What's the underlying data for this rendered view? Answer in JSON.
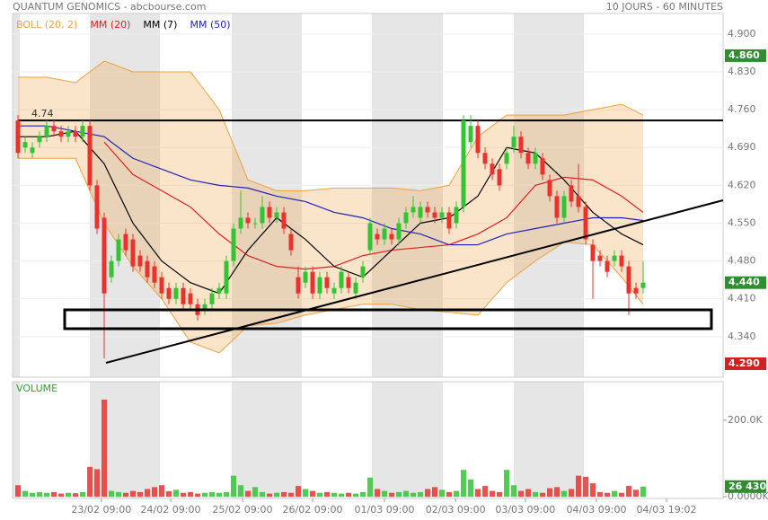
{
  "chart_data": {
    "type": "candlestick",
    "title": "QUANTUM GENOMICS - abcbourse.com",
    "subtitle": "10 JOURS - 60 MINUTES",
    "xlim": [
      -0.75,
      98.125
    ],
    "xticks": [
      {
        "value": 11.6,
        "label": "23/02 09:00"
      },
      {
        "value": 21.25,
        "label": "24/02 09:00"
      },
      {
        "value": 31.25,
        "label": "25/02 09:00"
      },
      {
        "value": 41,
        "label": "26/02 09:00"
      },
      {
        "value": 51,
        "label": "01/03 09:00"
      },
      {
        "value": 60.9,
        "label": "02/03 09:00"
      },
      {
        "value": 70.6,
        "label": "03/03 09:00"
      },
      {
        "value": 80.5,
        "label": "04/03 09:00"
      },
      {
        "value": 90.25,
        "label": "04/03 19:02"
      }
    ],
    "ylim": [
      4.265,
      4.938
    ],
    "yticks": [
      {
        "value": 4.34,
        "label": "4.340"
      },
      {
        "value": 4.41,
        "label": "4.410"
      },
      {
        "value": 4.48,
        "label": "4.480"
      },
      {
        "value": 4.55,
        "label": "4.550"
      },
      {
        "value": 4.62,
        "label": "4.620"
      },
      {
        "value": 4.69,
        "label": "4.690"
      },
      {
        "value": 4.76,
        "label": "4.760"
      },
      {
        "value": 4.83,
        "label": "4.830"
      },
      {
        "value": 4.9,
        "label": "4.900"
      }
    ],
    "up_color": "#33c433",
    "down_color": "#e8322e",
    "open": [
      4.74,
      4.69,
      4.68,
      4.7,
      4.71,
      4.73,
      4.72,
      4.71,
      4.72,
      4.71,
      4.73,
      4.62,
      4.56,
      4.45,
      4.48,
      4.53,
      4.52,
      4.49,
      4.48,
      4.47,
      4.45,
      4.43,
      4.41,
      4.43,
      4.42,
      4.4,
      4.39,
      4.4,
      4.42,
      4.42,
      4.48,
      4.54,
      4.56,
      4.55,
      4.55,
      4.58,
      4.56,
      4.57,
      4.53,
      4.45,
      4.44,
      4.46,
      4.42,
      4.45,
      4.42,
      4.43,
      4.45,
      4.42,
      4.45,
      4.5,
      4.53,
      4.52,
      4.53,
      4.52,
      4.55,
      4.57,
      4.56,
      4.58,
      4.57,
      4.56,
      4.57,
      4.55,
      4.58,
      4.7,
      4.73,
      4.68,
      4.66,
      4.65,
      4.66,
      4.69,
      4.71,
      4.68,
      4.66,
      4.67,
      4.63,
      4.6,
      4.56,
      4.62,
      4.6,
      4.58,
      4.51,
      4.49,
      4.48,
      4.48,
      4.49,
      4.47,
      4.43,
      4.43
    ],
    "high": [
      4.75,
      4.71,
      4.7,
      4.72,
      4.74,
      4.74,
      4.73,
      4.73,
      4.73,
      4.74,
      4.74,
      4.63,
      4.57,
      4.49,
      4.53,
      4.54,
      4.53,
      4.5,
      4.49,
      4.48,
      4.46,
      4.44,
      4.44,
      4.44,
      4.43,
      4.41,
      4.41,
      4.43,
      4.44,
      4.49,
      4.55,
      4.61,
      4.57,
      4.56,
      4.6,
      4.59,
      4.58,
      4.58,
      4.54,
      4.47,
      4.47,
      4.47,
      4.46,
      4.46,
      4.44,
      4.47,
      4.46,
      4.45,
      4.48,
      4.56,
      4.54,
      4.55,
      4.54,
      4.56,
      4.58,
      4.6,
      4.59,
      4.59,
      4.58,
      4.58,
      4.58,
      4.59,
      4.75,
      4.75,
      4.74,
      4.69,
      4.67,
      4.66,
      4.69,
      4.73,
      4.72,
      4.69,
      4.69,
      4.68,
      4.64,
      4.61,
      4.61,
      4.63,
      4.66,
      4.59,
      4.52,
      4.5,
      4.49,
      4.5,
      4.5,
      4.48,
      4.44,
      4.48
    ],
    "low": [
      4.67,
      4.68,
      4.67,
      4.69,
      4.7,
      4.71,
      4.7,
      4.7,
      4.7,
      4.7,
      4.61,
      4.53,
      4.3,
      4.44,
      4.47,
      4.49,
      4.46,
      4.46,
      4.44,
      4.43,
      4.41,
      4.4,
      4.4,
      4.39,
      4.39,
      4.37,
      4.38,
      4.39,
      4.41,
      4.41,
      4.47,
      4.53,
      4.54,
      4.54,
      4.54,
      4.55,
      4.55,
      4.53,
      4.49,
      4.41,
      4.43,
      4.41,
      4.41,
      4.42,
      4.41,
      4.42,
      4.42,
      4.41,
      4.44,
      4.49,
      4.51,
      4.51,
      4.51,
      4.51,
      4.54,
      4.56,
      4.55,
      4.56,
      4.55,
      4.55,
      4.53,
      4.54,
      4.57,
      4.69,
      4.67,
      4.65,
      4.63,
      4.61,
      4.65,
      4.68,
      4.67,
      4.65,
      4.65,
      4.63,
      4.59,
      4.55,
      4.55,
      4.58,
      4.57,
      4.51,
      4.41,
      4.47,
      4.45,
      4.47,
      4.46,
      4.38,
      4.41,
      4.42
    ],
    "close": [
      4.68,
      4.7,
      4.69,
      4.71,
      4.73,
      4.72,
      4.71,
      4.72,
      4.71,
      4.73,
      4.62,
      4.54,
      4.42,
      4.48,
      4.52,
      4.5,
      4.47,
      4.47,
      4.45,
      4.44,
      4.42,
      4.41,
      4.43,
      4.4,
      4.4,
      4.38,
      4.4,
      4.42,
      4.43,
      4.48,
      4.54,
      4.56,
      4.55,
      4.55,
      4.58,
      4.56,
      4.57,
      4.54,
      4.5,
      4.42,
      4.46,
      4.42,
      4.45,
      4.43,
      4.43,
      4.46,
      4.43,
      4.44,
      4.47,
      4.55,
      4.52,
      4.54,
      4.52,
      4.55,
      4.57,
      4.58,
      4.58,
      4.57,
      4.56,
      4.57,
      4.54,
      4.58,
      4.74,
      4.73,
      4.68,
      4.66,
      4.64,
      4.62,
      4.68,
      4.71,
      4.68,
      4.66,
      4.68,
      4.64,
      4.6,
      4.56,
      4.6,
      4.59,
      4.58,
      4.52,
      4.48,
      4.48,
      4.46,
      4.49,
      4.47,
      4.42,
      4.42,
      4.44
    ],
    "ma_x": [
      0,
      4,
      8,
      12,
      16,
      20,
      24,
      28,
      32,
      36,
      40,
      44,
      48,
      52,
      56,
      60,
      64,
      68,
      72,
      76,
      80,
      84,
      87
    ],
    "bollinger": {
      "name": "BOLL (20, 2)",
      "color": "#f0a040",
      "upper": [
        4.82,
        4.82,
        4.81,
        4.85,
        4.83,
        4.83,
        4.83,
        4.76,
        4.63,
        4.61,
        4.61,
        4.615,
        4.615,
        4.615,
        4.61,
        4.62,
        4.71,
        4.75,
        4.75,
        4.75,
        4.76,
        4.77,
        4.75
      ],
      "lower": [
        4.67,
        4.67,
        4.67,
        4.55,
        4.47,
        4.41,
        4.33,
        4.31,
        4.36,
        4.365,
        4.38,
        4.39,
        4.4,
        4.4,
        4.39,
        4.385,
        4.38,
        4.44,
        4.48,
        4.515,
        4.51,
        4.45,
        4.4
      ]
    },
    "series": [
      {
        "name": "MM (20)",
        "color": "#e02020",
        "values": [
          null,
          null,
          null,
          4.7,
          4.64,
          4.61,
          4.58,
          4.53,
          4.49,
          4.47,
          4.465,
          4.47,
          4.49,
          4.5,
          4.505,
          4.51,
          4.53,
          4.56,
          4.62,
          4.635,
          4.63,
          4.6,
          4.57
        ]
      },
      {
        "name": "MM (7)",
        "color": "#000000",
        "values": [
          4.71,
          4.71,
          4.72,
          4.66,
          4.55,
          4.48,
          4.44,
          4.42,
          4.5,
          4.56,
          4.52,
          4.47,
          4.45,
          4.5,
          4.55,
          4.56,
          4.6,
          4.69,
          4.68,
          4.63,
          4.57,
          4.53,
          4.51
        ]
      },
      {
        "name": "MM (50)",
        "color": "#2020b8",
        "values": [
          4.73,
          4.73,
          4.72,
          4.71,
          4.67,
          4.65,
          4.63,
          4.62,
          4.615,
          4.6,
          4.59,
          4.57,
          4.56,
          4.54,
          4.53,
          4.51,
          4.51,
          4.53,
          4.54,
          4.55,
          4.56,
          4.56,
          4.555
        ]
      }
    ],
    "level": {
      "value": 4.74,
      "label": "4.74"
    },
    "price_markers": [
      {
        "value": 4.86,
        "label": "4.860",
        "color": "#2f8f2f"
      },
      {
        "value": 4.44,
        "label": "4.440",
        "color": "#2f8f2f"
      },
      {
        "value": 4.29,
        "label": "4.290",
        "color": "#d42020"
      }
    ],
    "volume": {
      "title": "VOLUME",
      "ylim": [
        0,
        301000
      ],
      "yticks": [
        {
          "value": 0,
          "label": "0.0000K"
        },
        {
          "value": 200000,
          "label": "200.0K"
        }
      ],
      "values": [
        30000,
        15000,
        10000,
        12000,
        10000,
        12000,
        8000,
        10000,
        9000,
        12000,
        78000,
        72000,
        254000,
        15000,
        12000,
        10000,
        15000,
        12000,
        20000,
        25000,
        30000,
        14000,
        18000,
        10000,
        12000,
        8000,
        10000,
        12000,
        10000,
        12000,
        55000,
        30000,
        15000,
        25000,
        12000,
        8000,
        10000,
        12000,
        10000,
        28000,
        20000,
        15000,
        10000,
        12000,
        10000,
        8000,
        10000,
        8000,
        12000,
        50000,
        20000,
        15000,
        10000,
        12000,
        15000,
        10000,
        12000,
        20000,
        25000,
        18000,
        12000,
        15000,
        70000,
        45000,
        20000,
        28000,
        15000,
        12000,
        70000,
        30000,
        15000,
        20000,
        12000,
        10000,
        22000,
        25000,
        15000,
        20000,
        55000,
        52000,
        35000,
        12000,
        10000,
        15000,
        10000,
        28000,
        18000,
        26430
      ],
      "last": {
        "value": 26430,
        "label": "26 430",
        "color": "#2f8f2f"
      }
    }
  }
}
